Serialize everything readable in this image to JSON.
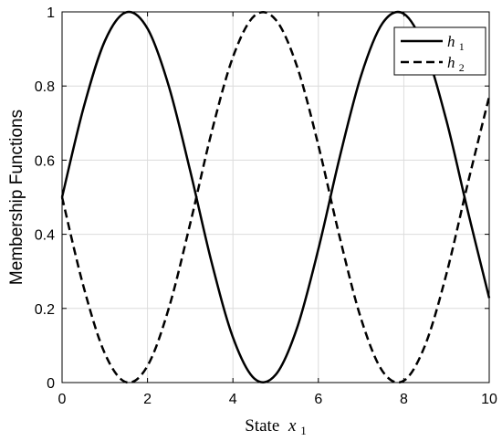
{
  "chart_data": {
    "type": "line",
    "xlabel": "State",
    "xlabel_var": "x",
    "xlabel_sub": "1",
    "ylabel": "Membership Functions",
    "xlim": [
      0,
      10
    ],
    "ylim": [
      0,
      1
    ],
    "xticks": [
      0,
      2,
      4,
      6,
      8,
      10
    ],
    "yticks": [
      0,
      0.2,
      0.4,
      0.6,
      0.8,
      1
    ],
    "xtick_labels": [
      "0",
      "2",
      "4",
      "6",
      "8",
      "10"
    ],
    "ytick_labels": [
      "0",
      "0.2",
      "0.4",
      "0.6",
      "0.8",
      "1"
    ],
    "grid": true,
    "legend_position": "top-right",
    "x": [
      0,
      0.5,
      1,
      1.5,
      2,
      2.5,
      3,
      3.5,
      4,
      4.5,
      5,
      5.5,
      6,
      6.5,
      7,
      7.5,
      8,
      8.5,
      9,
      9.5,
      10
    ],
    "series": [
      {
        "name": "h",
        "name_sub": "1",
        "style": "solid",
        "color": "#000000",
        "values": [
          0.5,
          0.74,
          0.921,
          0.999,
          0.955,
          0.799,
          0.571,
          0.325,
          0.122,
          0.011,
          0.021,
          0.147,
          0.36,
          0.608,
          0.828,
          0.969,
          0.995,
          0.899,
          0.706,
          0.462,
          0.228
        ]
      },
      {
        "name": "h",
        "name_sub": "2",
        "style": "dashed",
        "color": "#000000",
        "values": [
          0.5,
          0.26,
          0.079,
          0.001,
          0.045,
          0.201,
          0.429,
          0.675,
          0.878,
          0.989,
          0.979,
          0.853,
          0.64,
          0.392,
          0.172,
          0.031,
          0.005,
          0.101,
          0.294,
          0.538,
          0.772
        ]
      }
    ]
  }
}
